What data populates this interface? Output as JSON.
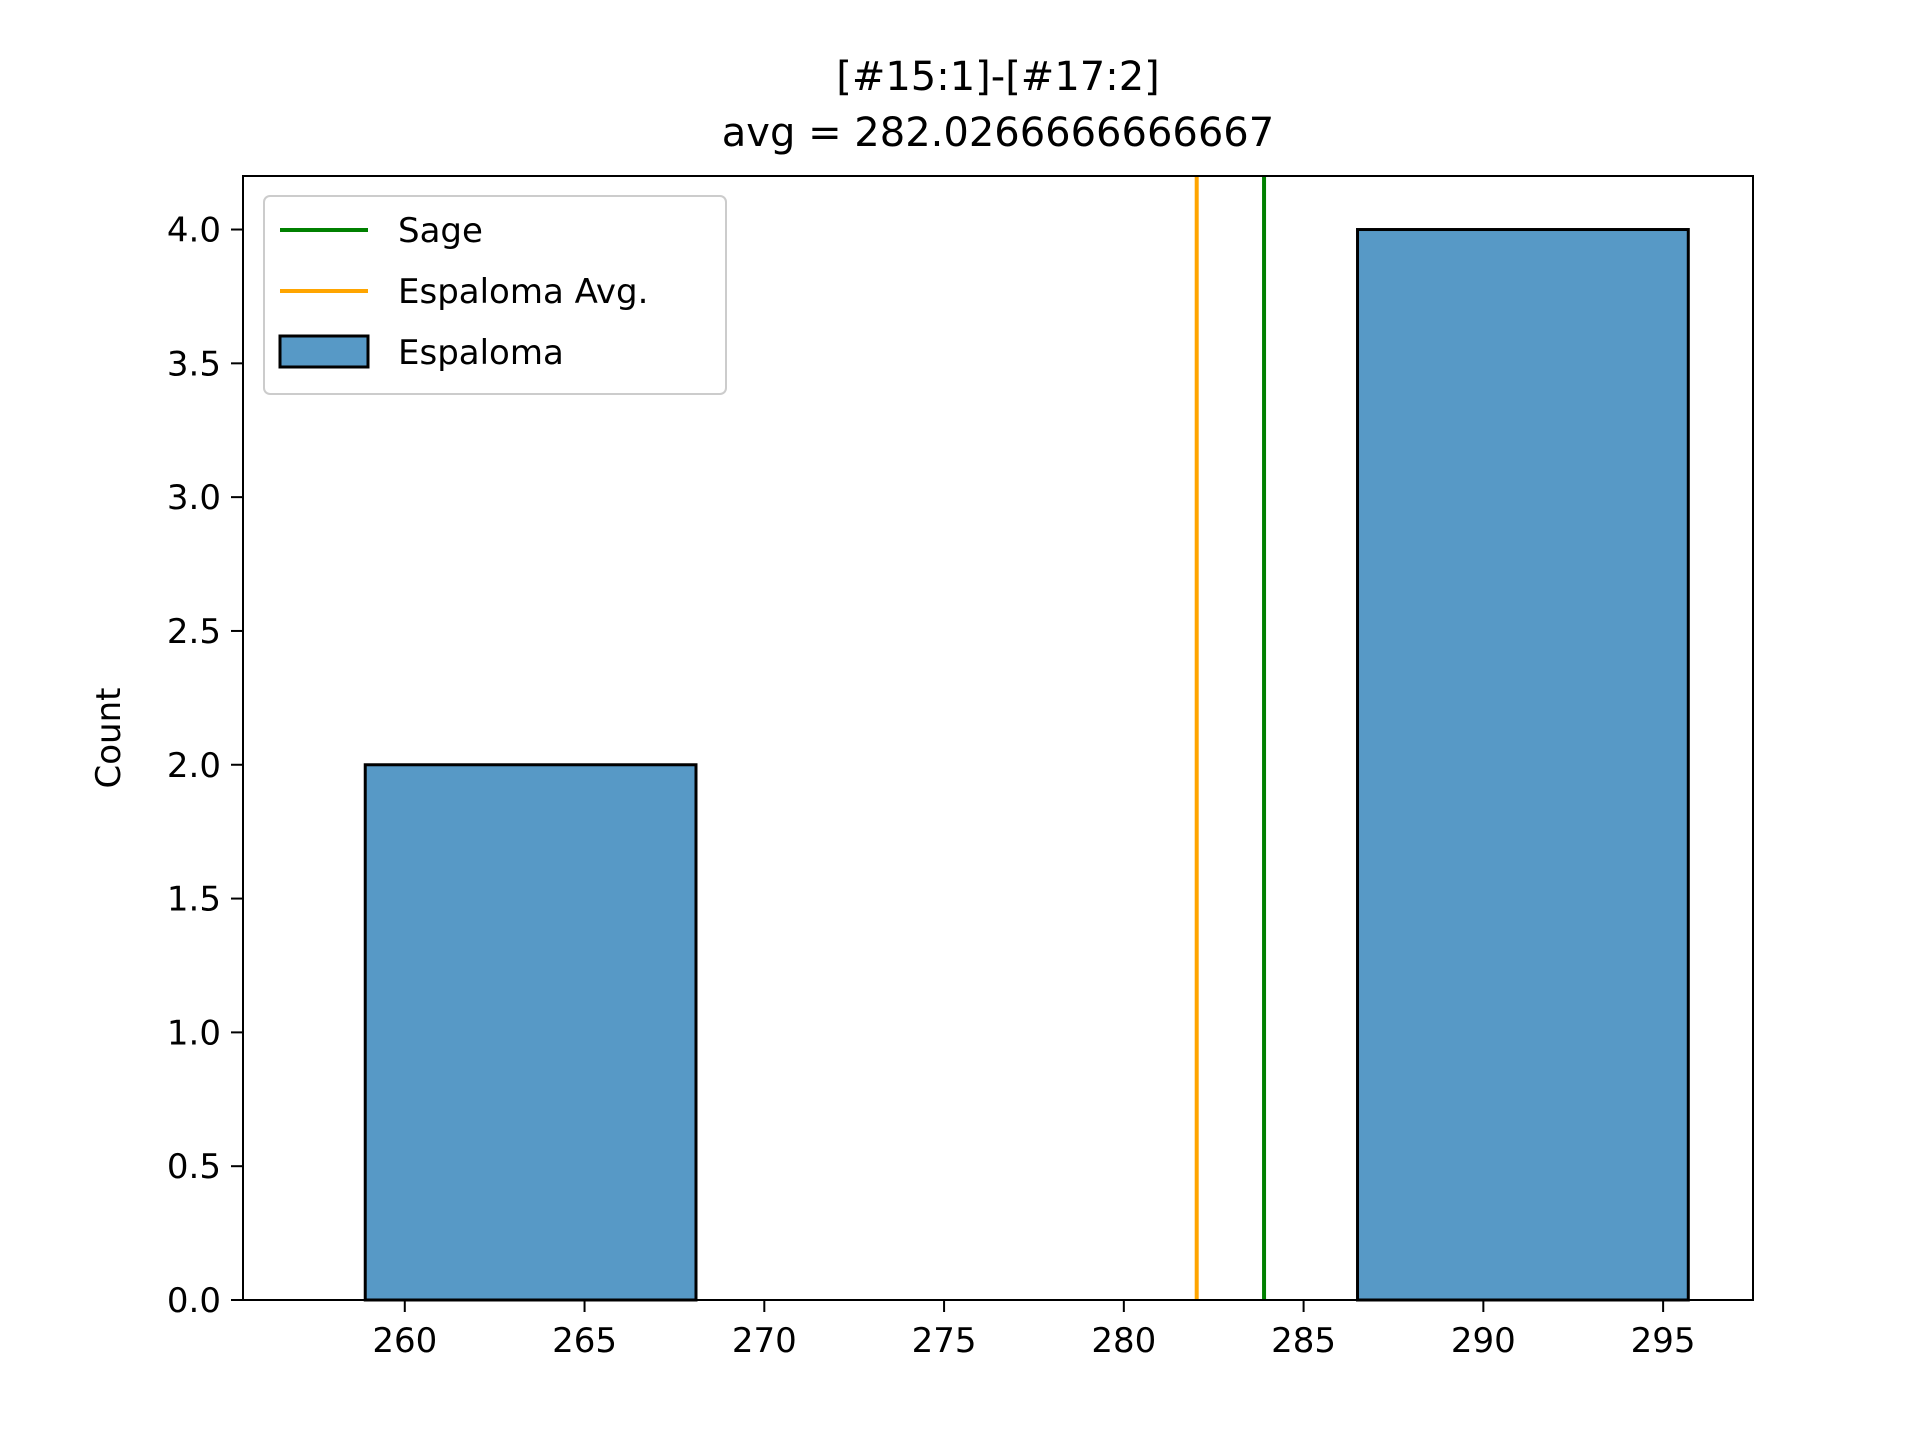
{
  "chart_data": {
    "type": "bar",
    "title": "[#15:1]-[#17:2]",
    "subtitle": "avg = 282.0266666666667",
    "xlabel": "",
    "ylabel": "Count",
    "xlim": [
      255.5,
      297.5
    ],
    "ylim": [
      0,
      4.2
    ],
    "xticks": [
      "260",
      "265",
      "270",
      "275",
      "280",
      "285",
      "290",
      "295"
    ],
    "yticks": [
      "0.0",
      "0.5",
      "1.0",
      "1.5",
      "2.0",
      "2.5",
      "3.0",
      "3.5",
      "4.0"
    ],
    "grid": false,
    "legend_position": "top-left",
    "series": [
      {
        "name": "Espaloma",
        "kind": "histogram",
        "color": "#5799c6",
        "edge_color": "#000000",
        "bins": [
          {
            "x0": 258.9,
            "x1": 268.1,
            "count": 2
          },
          {
            "x0": 268.1,
            "x1": 277.3,
            "count": 0
          },
          {
            "x0": 277.3,
            "x1": 286.5,
            "count": 0
          },
          {
            "x0": 286.5,
            "x1": 295.7,
            "count": 4
          }
        ]
      },
      {
        "name": "Sage",
        "kind": "vline",
        "color": "#008000",
        "x": 283.9
      },
      {
        "name": "Espaloma Avg.",
        "kind": "vline",
        "color": "#ffa500",
        "x": 282.0266666666667
      }
    ],
    "legend": [
      {
        "label": "Sage",
        "symbol": "line",
        "color": "#008000"
      },
      {
        "label": "Espaloma Avg.",
        "symbol": "line",
        "color": "#ffa500"
      },
      {
        "label": "Espaloma",
        "symbol": "patch",
        "color": "#5799c6"
      }
    ]
  }
}
